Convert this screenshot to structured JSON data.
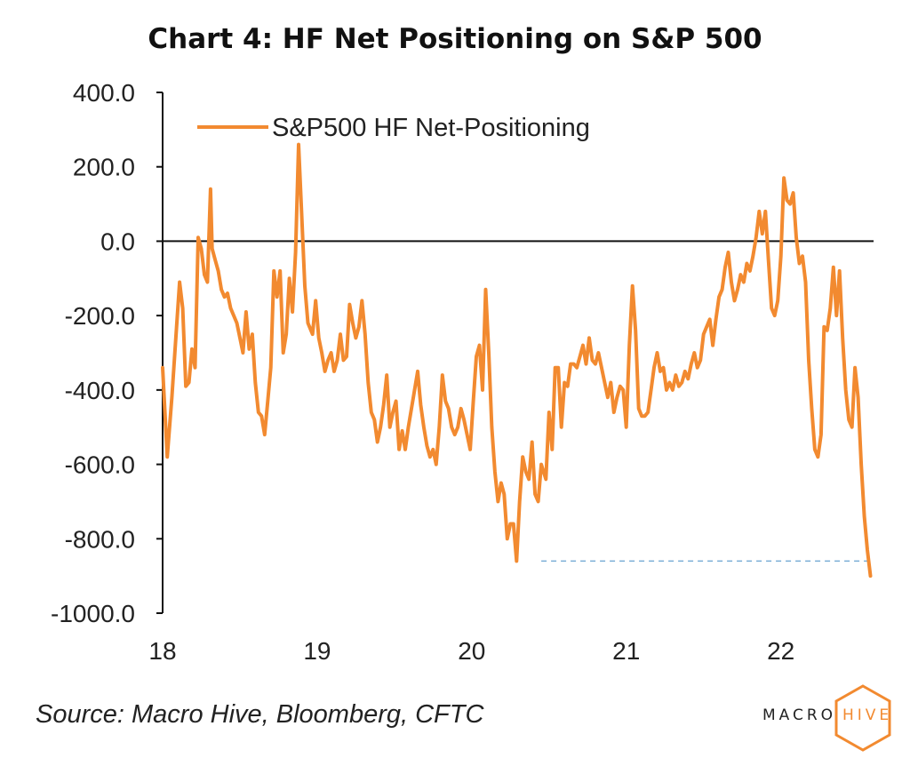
{
  "title": "Chart 4: HF Net Positioning on S&P 500",
  "source": "Source: Macro Hive, Bloomberg, CFTC",
  "logo": {
    "macro": "MACRO",
    "hive": "HIVE"
  },
  "colors": {
    "line": "#f28a30",
    "zero_line": "#111111",
    "dashed_line": "#7aaed6",
    "axis": "#111111"
  },
  "chart_data": {
    "type": "line",
    "title": "Chart 4: HF Net Positioning on S&P 500",
    "xlabel": "",
    "ylabel": "",
    "xlim": [
      18.0,
      22.6
    ],
    "ylim": [
      -1000,
      400
    ],
    "yticks": [
      400,
      200,
      0,
      -200,
      -400,
      -600,
      -800,
      -1000
    ],
    "ytick_labels": [
      "400.0",
      "200.0",
      "0.0",
      "-200.0",
      "-400.0",
      "-600.0",
      "-800.0",
      "-1000.0"
    ],
    "xticks": [
      18,
      19,
      20,
      21,
      22
    ],
    "xtick_labels": [
      "18",
      "19",
      "20",
      "21",
      "22"
    ],
    "legend": {
      "position": "top-left"
    },
    "grid": false,
    "reference_lines": [
      {
        "type": "horizontal",
        "y": 0,
        "style": "solid"
      },
      {
        "type": "horizontal",
        "y": -860,
        "x_start": 20.45,
        "x_end": 22.58,
        "style": "dashed"
      }
    ],
    "series": [
      {
        "name": "S&P500 HF Net-Positioning",
        "x": [
          18.0,
          18.03,
          18.06,
          18.09,
          18.11,
          18.13,
          18.15,
          18.17,
          18.19,
          18.21,
          18.23,
          18.25,
          18.27,
          18.29,
          18.31,
          18.32,
          18.34,
          18.36,
          18.38,
          18.4,
          18.42,
          18.44,
          18.46,
          18.48,
          18.5,
          18.52,
          18.54,
          18.56,
          18.58,
          18.6,
          18.62,
          18.64,
          18.66,
          18.68,
          18.7,
          18.72,
          18.74,
          18.76,
          18.78,
          18.8,
          18.82,
          18.84,
          18.86,
          18.88,
          18.9,
          18.92,
          18.94,
          18.97,
          18.99,
          19.01,
          19.03,
          19.05,
          19.07,
          19.09,
          19.11,
          19.13,
          19.15,
          19.17,
          19.19,
          19.21,
          19.23,
          19.25,
          19.27,
          19.29,
          19.31,
          19.33,
          19.35,
          19.37,
          19.39,
          19.41,
          19.43,
          19.45,
          19.47,
          19.49,
          19.51,
          19.53,
          19.55,
          19.57,
          19.59,
          19.61,
          19.63,
          19.65,
          19.67,
          19.69,
          19.71,
          19.73,
          19.75,
          19.77,
          19.79,
          19.81,
          19.83,
          19.85,
          19.87,
          19.89,
          19.91,
          19.93,
          19.95,
          19.97,
          19.99,
          20.01,
          20.03,
          20.05,
          20.07,
          20.09,
          20.11,
          20.13,
          20.15,
          20.17,
          20.19,
          20.21,
          20.23,
          20.25,
          20.27,
          20.29,
          20.31,
          20.33,
          20.35,
          20.37,
          20.39,
          20.41,
          20.43,
          20.45,
          20.48,
          20.5,
          20.52,
          20.54,
          20.56,
          20.58,
          20.6,
          20.62,
          20.64,
          20.66,
          20.68,
          20.7,
          20.72,
          20.74,
          20.76,
          20.78,
          20.8,
          20.82,
          20.84,
          20.86,
          20.88,
          20.9,
          20.92,
          20.94,
          20.96,
          20.98,
          21.0,
          21.02,
          21.04,
          21.06,
          21.08,
          21.1,
          21.12,
          21.14,
          21.16,
          21.18,
          21.2,
          21.22,
          21.24,
          21.26,
          21.28,
          21.3,
          21.32,
          21.34,
          21.36,
          21.38,
          21.4,
          21.42,
          21.44,
          21.46,
          21.48,
          21.5,
          21.52,
          21.54,
          21.56,
          21.58,
          21.6,
          21.62,
          21.64,
          21.66,
          21.68,
          21.7,
          21.72,
          21.74,
          21.76,
          21.78,
          21.8,
          21.82,
          21.84,
          21.86,
          21.88,
          21.9,
          21.92,
          21.94,
          21.96,
          21.98,
          22.0,
          22.02,
          22.04,
          22.06,
          22.08,
          22.1,
          22.12,
          22.14,
          22.16,
          22.18,
          22.2,
          22.22,
          22.24,
          22.26,
          22.28,
          22.3,
          22.32,
          22.34,
          22.36,
          22.38,
          22.4,
          22.42,
          22.44,
          22.46,
          22.48,
          22.5,
          22.52,
          22.54,
          22.56,
          22.58
        ],
        "y": [
          -340,
          -580,
          -420,
          -230,
          -110,
          -180,
          -390,
          -380,
          -290,
          -340,
          10,
          -20,
          -90,
          -110,
          140,
          -20,
          -50,
          -80,
          -130,
          -150,
          -140,
          -180,
          -200,
          -220,
          -260,
          -300,
          -190,
          -290,
          -250,
          -380,
          -460,
          -470,
          -520,
          -430,
          -340,
          -80,
          -150,
          -80,
          -300,
          -250,
          -100,
          -190,
          -30,
          260,
          70,
          -120,
          -220,
          -250,
          -160,
          -260,
          -300,
          -350,
          -320,
          -300,
          -350,
          -320,
          -250,
          -320,
          -310,
          -170,
          -220,
          -260,
          -230,
          -160,
          -250,
          -380,
          -460,
          -480,
          -540,
          -500,
          -440,
          -360,
          -500,
          -460,
          -430,
          -560,
          -510,
          -560,
          -500,
          -450,
          -400,
          -350,
          -440,
          -500,
          -550,
          -580,
          -560,
          -600,
          -500,
          -360,
          -430,
          -450,
          -500,
          -520,
          -500,
          -450,
          -480,
          -520,
          -560,
          -430,
          -310,
          -280,
          -400,
          -130,
          -300,
          -500,
          -620,
          -700,
          -650,
          -680,
          -800,
          -760,
          -760,
          -860,
          -700,
          -580,
          -620,
          -640,
          -540,
          -680,
          -700,
          -600,
          -640,
          -460,
          -560,
          -340,
          -340,
          -500,
          -380,
          -390,
          -330,
          -330,
          -340,
          -310,
          -280,
          -330,
          -260,
          -320,
          -330,
          -300,
          -340,
          -380,
          -420,
          -380,
          -460,
          -420,
          -390,
          -400,
          -500,
          -280,
          -120,
          -240,
          -450,
          -470,
          -470,
          -460,
          -400,
          -340,
          -300,
          -350,
          -340,
          -400,
          -380,
          -400,
          -360,
          -390,
          -380,
          -350,
          -370,
          -330,
          -300,
          -340,
          -320,
          -250,
          -230,
          -210,
          -280,
          -210,
          -150,
          -130,
          -70,
          -30,
          -110,
          -160,
          -130,
          -90,
          -110,
          -60,
          -80,
          -40,
          10,
          80,
          20,
          80,
          -50,
          -180,
          -200,
          -160,
          -40,
          170,
          110,
          100,
          130,
          10,
          -60,
          -40,
          -110,
          -320,
          -450,
          -560,
          -580,
          -520,
          -230,
          -240,
          -180,
          -70,
          -200,
          -80,
          -260,
          -400,
          -480,
          -500,
          -340,
          -420,
          -600,
          -740,
          -830,
          -900
        ]
      }
    ]
  }
}
